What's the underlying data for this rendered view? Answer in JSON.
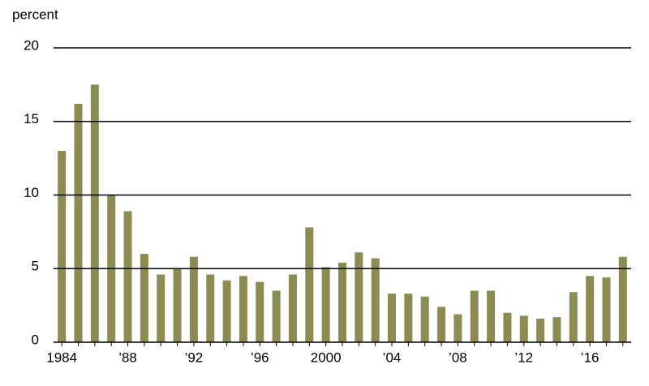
{
  "chart_data": {
    "type": "bar",
    "y_axis_label": "percent",
    "categories": [
      "1984",
      null,
      null,
      null,
      "’88",
      null,
      null,
      null,
      "’92",
      null,
      null,
      null,
      "’96",
      null,
      null,
      null,
      "2000",
      null,
      null,
      null,
      "’04",
      null,
      null,
      null,
      "’08",
      null,
      null,
      null,
      "’12",
      null,
      null,
      null,
      "’16",
      null,
      null
    ],
    "values": [
      13.0,
      16.2,
      17.5,
      10.0,
      8.9,
      6.0,
      4.6,
      5.0,
      5.8,
      4.6,
      4.2,
      4.5,
      4.1,
      3.5,
      4.6,
      7.8,
      5.1,
      5.4,
      6.1,
      5.7,
      3.3,
      3.3,
      3.1,
      2.4,
      1.9,
      3.5,
      3.5,
      2.0,
      1.8,
      1.6,
      1.7,
      3.4,
      4.5,
      4.4,
      5.8
    ],
    "color": "#8c8c52",
    "ylim": [
      0,
      20
    ],
    "yticks": [
      0,
      5,
      10,
      15,
      20
    ],
    "grid": true
  }
}
